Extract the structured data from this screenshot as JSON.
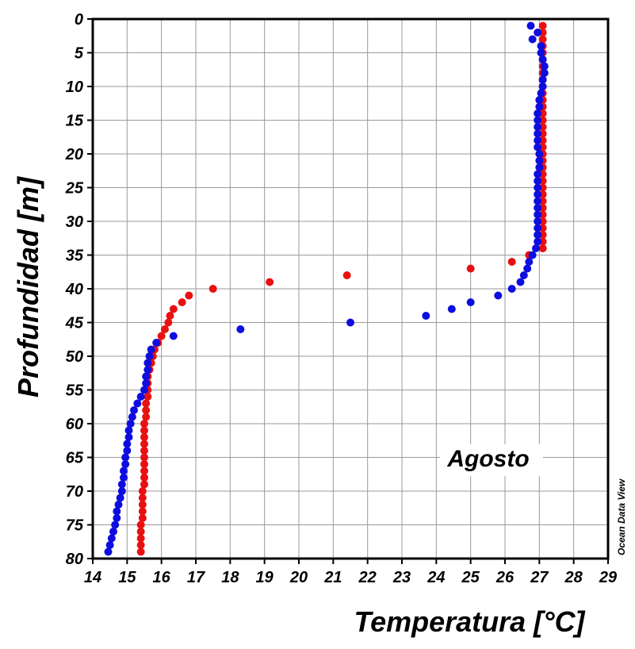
{
  "chart_data": {
    "type": "scatter",
    "xlabel": "Temperatura [°C]",
    "ylabel": "Profundidad [m]",
    "xlim": [
      14,
      29
    ],
    "ylim": [
      0,
      80
    ],
    "y_inverted": true,
    "grid": true,
    "x_ticks": [
      "14",
      "15",
      "16",
      "17",
      "18",
      "19",
      "20",
      "21",
      "22",
      "23",
      "24",
      "25",
      "26",
      "27",
      "28",
      "29"
    ],
    "y_ticks": [
      "0",
      "5",
      "10",
      "15",
      "20",
      "25",
      "30",
      "35",
      "40",
      "45",
      "50",
      "55",
      "60",
      "65",
      "70",
      "75",
      "80"
    ],
    "annotation": "Agosto",
    "credit": "Ocean Data View",
    "series": [
      {
        "color": "#e81010",
        "points": [
          [
            27.1,
            1
          ],
          [
            27.1,
            2
          ],
          [
            27.1,
            3
          ],
          [
            27.1,
            4
          ],
          [
            27.1,
            5
          ],
          [
            27.1,
            6
          ],
          [
            27.1,
            7
          ],
          [
            27.1,
            8
          ],
          [
            27.1,
            9
          ],
          [
            27.1,
            10
          ],
          [
            27.1,
            11
          ],
          [
            27.1,
            12
          ],
          [
            27.1,
            13
          ],
          [
            27.1,
            14
          ],
          [
            27.1,
            15
          ],
          [
            27.1,
            16
          ],
          [
            27.1,
            17
          ],
          [
            27.1,
            18
          ],
          [
            27.1,
            19
          ],
          [
            27.1,
            20
          ],
          [
            27.1,
            21
          ],
          [
            27.1,
            22
          ],
          [
            27.1,
            23
          ],
          [
            27.1,
            24
          ],
          [
            27.1,
            25
          ],
          [
            27.1,
            26
          ],
          [
            27.1,
            27
          ],
          [
            27.1,
            28
          ],
          [
            27.1,
            29
          ],
          [
            27.1,
            30
          ],
          [
            27.1,
            31
          ],
          [
            27.1,
            32
          ],
          [
            27.1,
            33
          ],
          [
            27.1,
            34
          ],
          [
            26.7,
            35
          ],
          [
            26.2,
            36
          ],
          [
            25.0,
            37
          ],
          [
            21.4,
            38
          ],
          [
            19.15,
            39
          ],
          [
            17.5,
            40
          ],
          [
            16.8,
            41
          ],
          [
            16.6,
            42
          ],
          [
            16.35,
            43
          ],
          [
            16.25,
            44
          ],
          [
            16.2,
            45
          ],
          [
            16.1,
            46
          ],
          [
            16.0,
            47
          ],
          [
            15.9,
            48
          ],
          [
            15.8,
            49
          ],
          [
            15.75,
            50
          ],
          [
            15.7,
            51
          ],
          [
            15.65,
            52
          ],
          [
            15.6,
            53
          ],
          [
            15.6,
            54
          ],
          [
            15.6,
            55
          ],
          [
            15.6,
            56
          ],
          [
            15.55,
            57
          ],
          [
            15.55,
            58
          ],
          [
            15.55,
            59
          ],
          [
            15.5,
            60
          ],
          [
            15.5,
            61
          ],
          [
            15.5,
            62
          ],
          [
            15.5,
            63
          ],
          [
            15.5,
            64
          ],
          [
            15.5,
            65
          ],
          [
            15.5,
            66
          ],
          [
            15.5,
            67
          ],
          [
            15.5,
            68
          ],
          [
            15.5,
            69
          ],
          [
            15.45,
            70
          ],
          [
            15.45,
            71
          ],
          [
            15.45,
            72
          ],
          [
            15.45,
            73
          ],
          [
            15.45,
            74
          ],
          [
            15.4,
            75
          ],
          [
            15.4,
            76
          ],
          [
            15.4,
            77
          ],
          [
            15.4,
            78
          ],
          [
            15.4,
            79
          ]
        ]
      },
      {
        "color": "#0d0de0",
        "points": [
          [
            26.75,
            1
          ],
          [
            26.95,
            2
          ],
          [
            26.8,
            3
          ],
          [
            27.05,
            4
          ],
          [
            27.05,
            5
          ],
          [
            27.1,
            6
          ],
          [
            27.15,
            7
          ],
          [
            27.15,
            8
          ],
          [
            27.1,
            9
          ],
          [
            27.1,
            10
          ],
          [
            27.05,
            11
          ],
          [
            27.0,
            12
          ],
          [
            27.0,
            13
          ],
          [
            26.95,
            14
          ],
          [
            26.95,
            15
          ],
          [
            26.95,
            16
          ],
          [
            26.95,
            17
          ],
          [
            26.95,
            18
          ],
          [
            26.95,
            19
          ],
          [
            27.0,
            20
          ],
          [
            27.0,
            21
          ],
          [
            27.0,
            22
          ],
          [
            26.95,
            23
          ],
          [
            26.95,
            24
          ],
          [
            26.95,
            25
          ],
          [
            26.95,
            26
          ],
          [
            26.95,
            27
          ],
          [
            26.95,
            28
          ],
          [
            26.95,
            29
          ],
          [
            26.95,
            30
          ],
          [
            26.95,
            31
          ],
          [
            26.95,
            32
          ],
          [
            26.95,
            33
          ],
          [
            26.9,
            34
          ],
          [
            26.8,
            35
          ],
          [
            26.7,
            36
          ],
          [
            26.65,
            37
          ],
          [
            26.55,
            38
          ],
          [
            26.45,
            39
          ],
          [
            26.2,
            40
          ],
          [
            25.8,
            41
          ],
          [
            25.0,
            42
          ],
          [
            24.45,
            43
          ],
          [
            23.7,
            44
          ],
          [
            21.5,
            45
          ],
          [
            18.3,
            46
          ],
          [
            16.35,
            47
          ],
          [
            15.85,
            48
          ],
          [
            15.7,
            49
          ],
          [
            15.65,
            50
          ],
          [
            15.6,
            51
          ],
          [
            15.6,
            52
          ],
          [
            15.55,
            53
          ],
          [
            15.55,
            54
          ],
          [
            15.5,
            55
          ],
          [
            15.4,
            56
          ],
          [
            15.3,
            57
          ],
          [
            15.2,
            58
          ],
          [
            15.15,
            59
          ],
          [
            15.1,
            60
          ],
          [
            15.05,
            61
          ],
          [
            15.05,
            62
          ],
          [
            15.0,
            63
          ],
          [
            15.0,
            64
          ],
          [
            14.95,
            65
          ],
          [
            14.95,
            66
          ],
          [
            14.9,
            67
          ],
          [
            14.9,
            68
          ],
          [
            14.85,
            69
          ],
          [
            14.85,
            70
          ],
          [
            14.8,
            71
          ],
          [
            14.75,
            72
          ],
          [
            14.7,
            73
          ],
          [
            14.7,
            74
          ],
          [
            14.65,
            75
          ],
          [
            14.6,
            76
          ],
          [
            14.55,
            77
          ],
          [
            14.5,
            78
          ],
          [
            14.45,
            79
          ]
        ]
      }
    ]
  }
}
